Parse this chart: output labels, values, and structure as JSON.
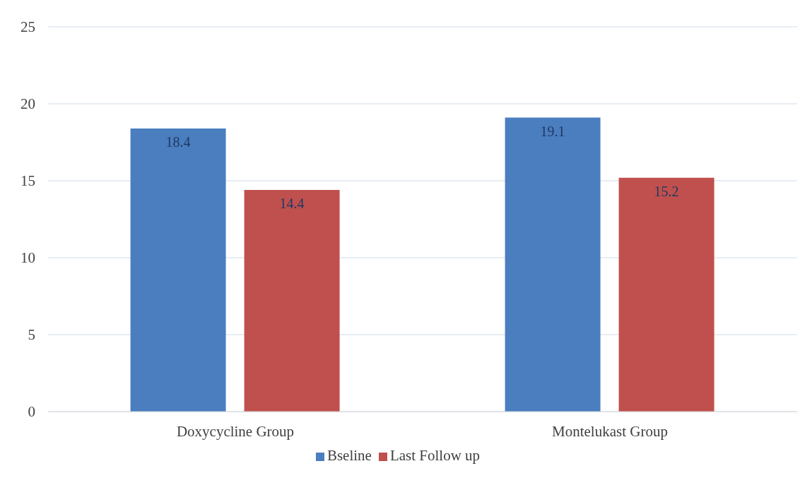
{
  "chart_data": {
    "type": "bar",
    "categories": [
      "Doxycycline  Group",
      "Montelukast Group"
    ],
    "series": [
      {
        "name": "Bseline",
        "color": "#4a7ebf",
        "values": [
          18.4,
          19.1
        ]
      },
      {
        "name": "Last Follow up",
        "color": "#c0504d",
        "values": [
          14.4,
          15.2
        ]
      }
    ],
    "ylim": [
      0,
      25
    ],
    "yticks": [
      0,
      5,
      10,
      15,
      20,
      25
    ],
    "grid": "y",
    "legend": "bottom",
    "data_labels": true
  }
}
